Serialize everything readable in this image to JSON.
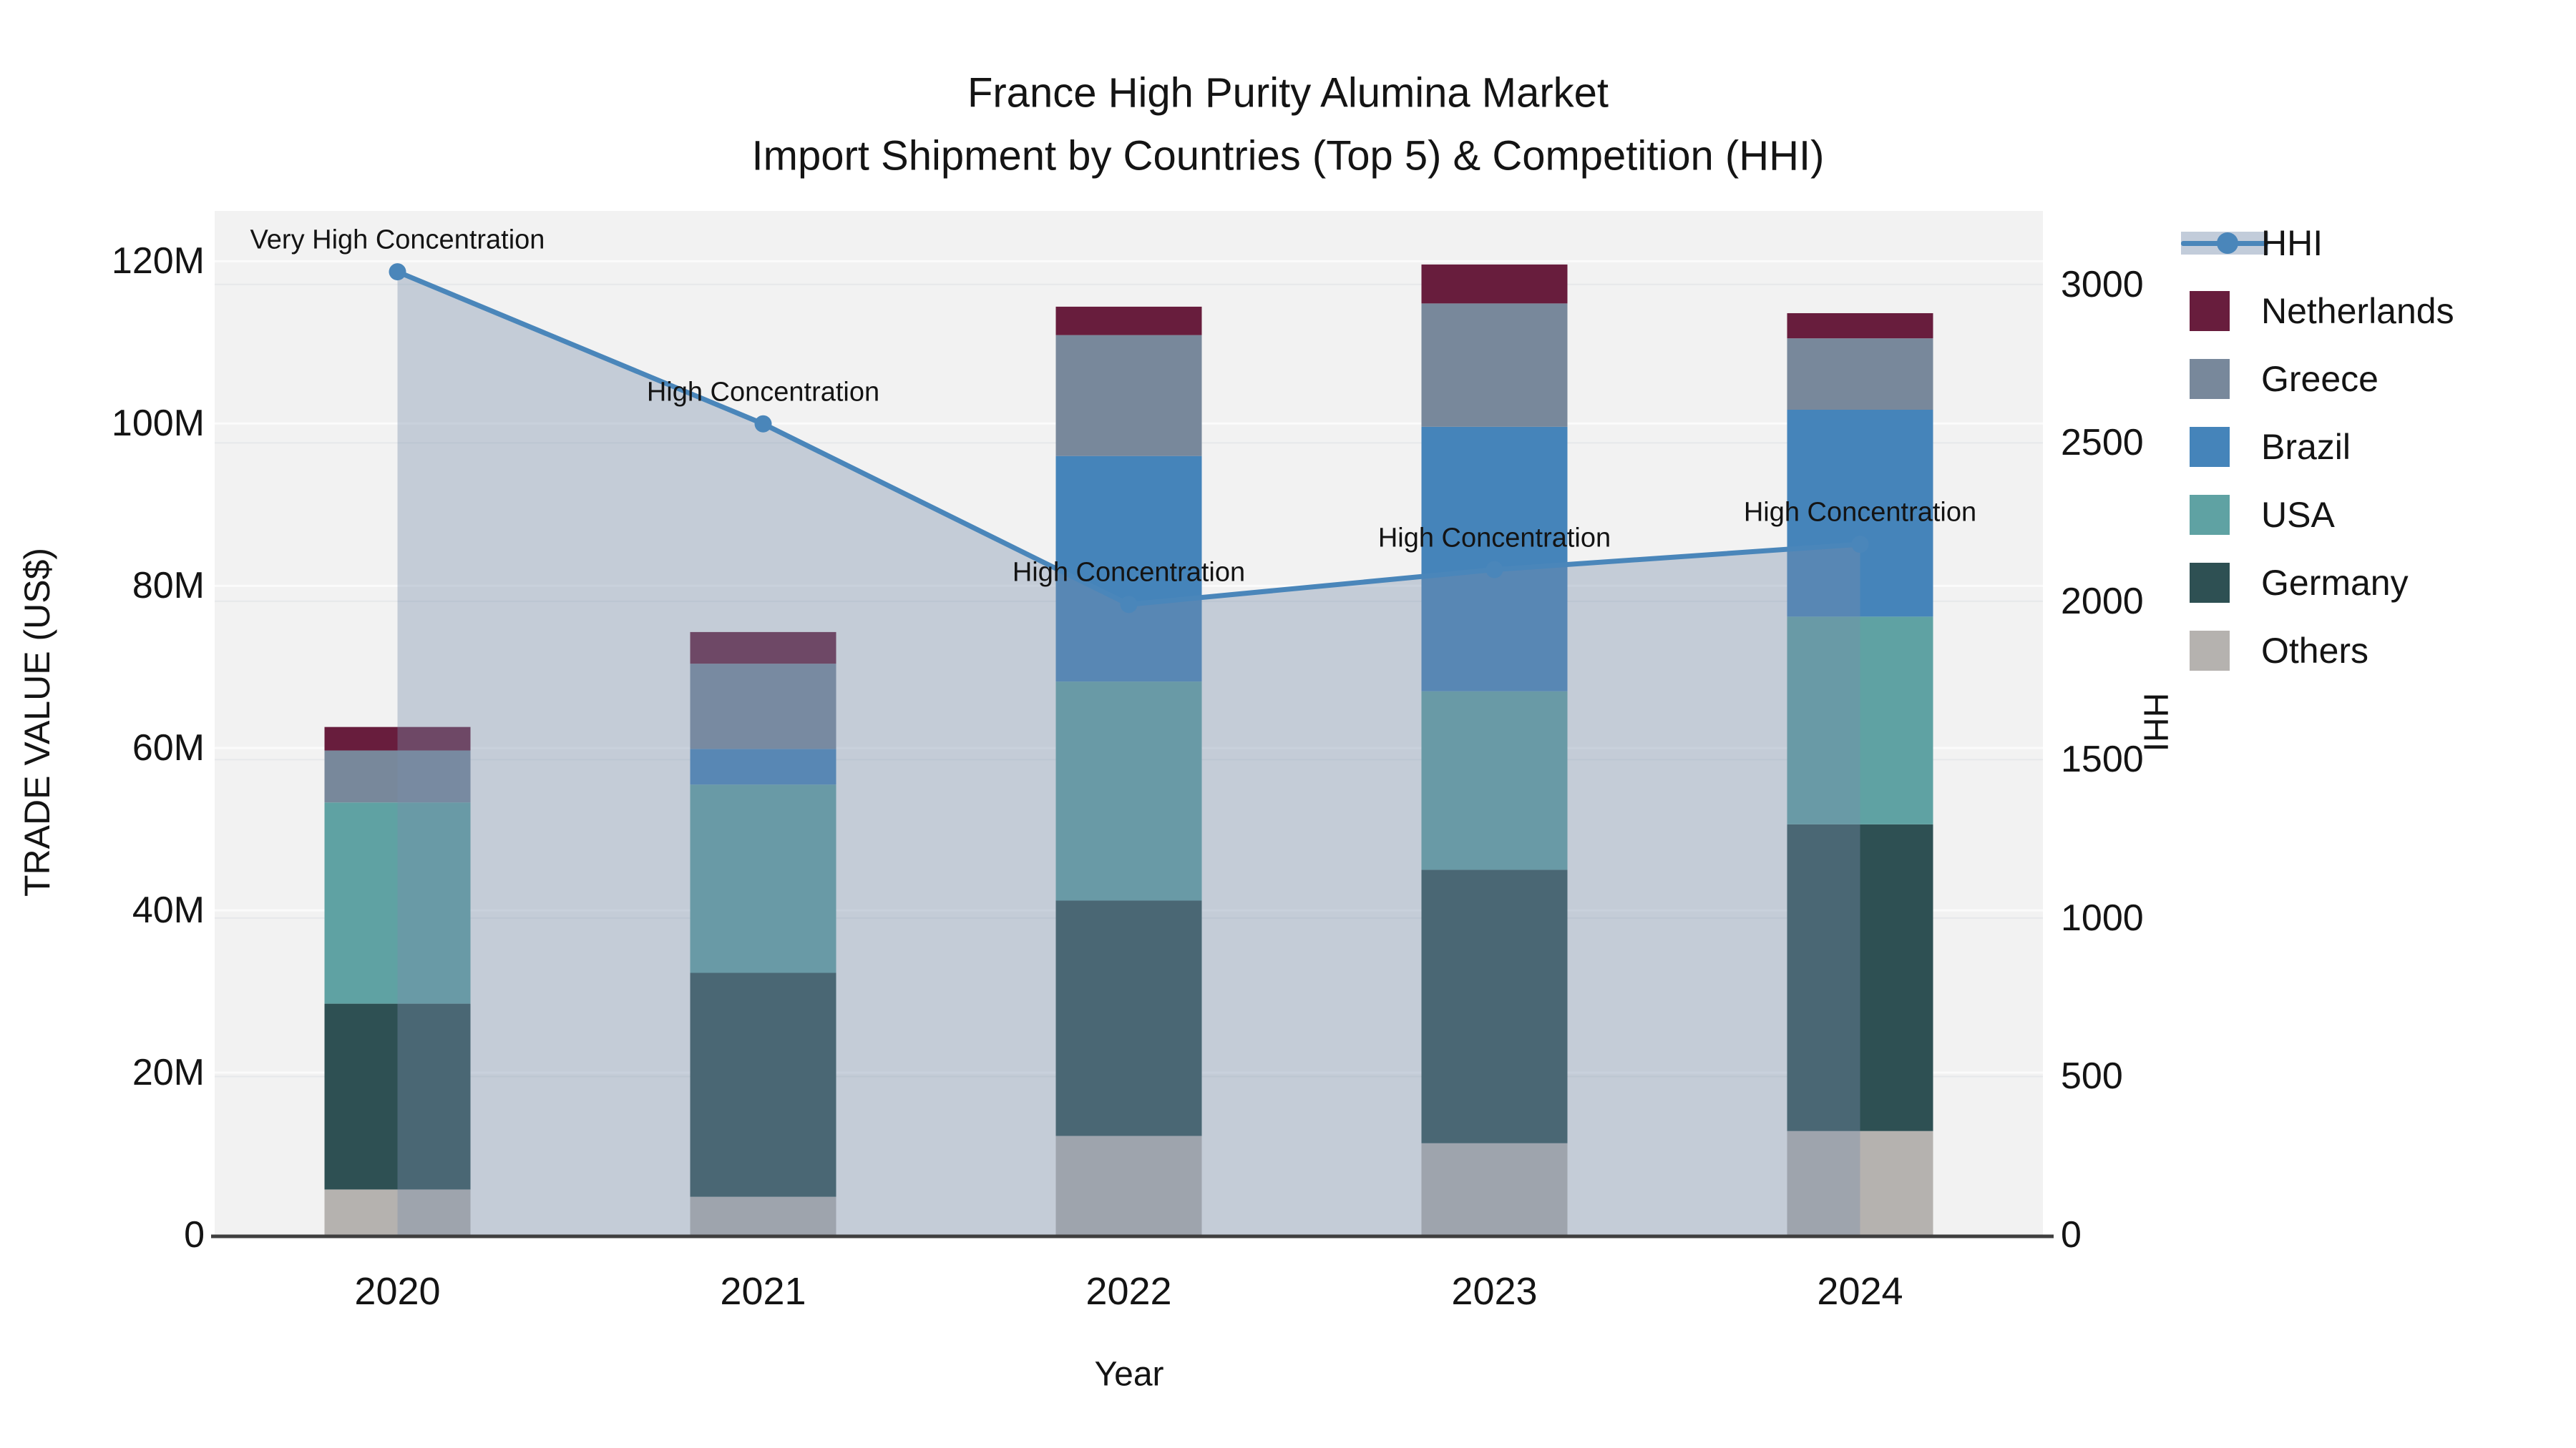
{
  "title": {
    "line1": "France High Purity Alumina Market",
    "line2": "Import Shipment by Countries (Top 5) & Competition (HHI)"
  },
  "axes": {
    "left": {
      "label": "TRADE VALUE (US$)",
      "tick_values": [
        0,
        20,
        40,
        60,
        80,
        100,
        120
      ],
      "tick_labels": [
        "0",
        "20M",
        "40M",
        "60M",
        "80M",
        "100M",
        "120M"
      ],
      "max": 126.2
    },
    "right": {
      "label": "HHI",
      "tick_values": [
        0,
        500,
        1000,
        1500,
        2000,
        2500,
        3000
      ],
      "tick_labels": [
        "0",
        "500",
        "1000",
        "1500",
        "2000",
        "2500",
        "3000"
      ],
      "max": 3232
    },
    "x": {
      "label": "Year",
      "categories": [
        "2020",
        "2021",
        "2022",
        "2023",
        "2024"
      ]
    }
  },
  "legend": {
    "items": [
      {
        "label": "HHI",
        "type": "line",
        "color": "#4a86ba"
      },
      {
        "label": "Netherlands",
        "type": "patch",
        "color": "#681d3d"
      },
      {
        "label": "Greece",
        "type": "patch",
        "color": "#78889b"
      },
      {
        "label": "Brazil",
        "type": "patch",
        "color": "#4584ba"
      },
      {
        "label": "USA",
        "type": "patch",
        "color": "#5fa2a3"
      },
      {
        "label": "Germany",
        "type": "patch",
        "color": "#2e5053"
      },
      {
        "label": "Others",
        "type": "patch",
        "color": "#b5b2af"
      }
    ]
  },
  "annotations": [
    {
      "label": "Very High Concentration"
    },
    {
      "label": "High Concentration"
    },
    {
      "label": "High Concentration"
    },
    {
      "label": "High Concentration"
    },
    {
      "label": "High Concentration"
    }
  ],
  "chart_data": {
    "type": "bar",
    "subtype": "stacked-bars-with-line",
    "title": "France High Purity Alumina Market — Import Shipment by Countries (Top 5) & Competition (HHI)",
    "categories": [
      "2020",
      "2021",
      "2022",
      "2023",
      "2024"
    ],
    "stack_order_bottom_to_top": [
      "Others",
      "Germany",
      "USA",
      "Brazil",
      "Greece",
      "Netherlands"
    ],
    "series": [
      {
        "name": "Others",
        "unit": "M US$",
        "values": [
          5.6,
          4.7,
          12.2,
          11.3,
          12.8
        ],
        "color": "#b5b2af"
      },
      {
        "name": "Germany",
        "unit": "M US$",
        "values": [
          22.9,
          27.6,
          29.0,
          33.7,
          37.8
        ],
        "color": "#2e5053"
      },
      {
        "name": "USA",
        "unit": "M US$",
        "values": [
          24.8,
          23.2,
          27.0,
          22.0,
          25.6
        ],
        "color": "#5fa2a3"
      },
      {
        "name": "Brazil",
        "unit": "M US$",
        "values": [
          0,
          4.4,
          27.8,
          32.6,
          25.5
        ],
        "color": "#4584ba"
      },
      {
        "name": "Greece",
        "unit": "M US$",
        "values": [
          6.4,
          10.5,
          14.9,
          15.2,
          8.8
        ],
        "color": "#78889b"
      },
      {
        "name": "Netherlands",
        "unit": "M US$",
        "values": [
          2.9,
          3.9,
          3.5,
          4.8,
          3.1
        ],
        "color": "#681d3d"
      }
    ],
    "bar_totals": [
      62.6,
      74.3,
      114.4,
      119.6,
      113.6
    ],
    "line_series": {
      "name": "HHI",
      "axis": "right",
      "values": [
        3040,
        2560,
        1990,
        2100,
        2180
      ],
      "color": "#4a86ba",
      "area_fill": "rgba(120,142,172,0.38)"
    },
    "xlabel": "Year",
    "ylabel": "TRADE VALUE (US$)",
    "y2label": "HHI",
    "ylim": [
      0,
      126.2
    ],
    "y2lim": [
      0,
      3232
    ],
    "grid": true,
    "legend_position": "right"
  },
  "style": {
    "plot_bg": "#f2f2f2",
    "grid_main": "#fbfbfb",
    "grid_secondary": "#e6e8ea",
    "axis_line": "#3f3f3f",
    "text": "#141414"
  }
}
